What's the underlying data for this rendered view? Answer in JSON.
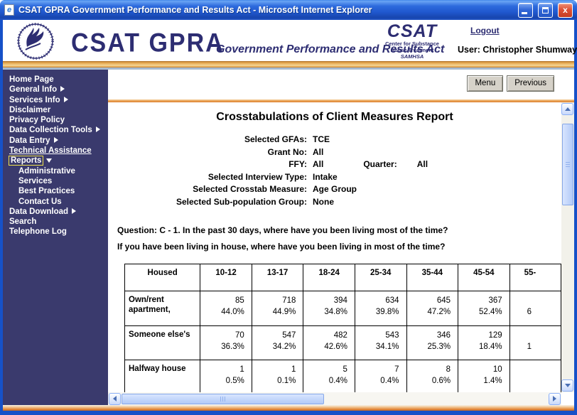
{
  "window": {
    "title": "CSAT GPRA Government Performance and Results Act - Microsoft Internet Explorer"
  },
  "header": {
    "brand": "CSAT GPRA",
    "brand_subtitle": "Government Performance and Results Act",
    "csat": {
      "title": "CSAT",
      "line1": "Center for Substance",
      "line2": "Abuse Treatment",
      "line3": "SAMHSA"
    },
    "logout": "Logout",
    "user": "User: Christopher Shumway"
  },
  "sidebar": {
    "items": [
      {
        "label": "Home Page"
      },
      {
        "label": "General Info",
        "arrow": "right"
      },
      {
        "label": "Services Info",
        "arrow": "right"
      },
      {
        "label": "Disclaimer"
      },
      {
        "label": "Privacy Policy"
      },
      {
        "label": "Data Collection Tools",
        "arrow": "right"
      },
      {
        "label": "Data Entry",
        "arrow": "right"
      },
      {
        "label": "Technical Assistance",
        "underline": true
      },
      {
        "label": "Reports",
        "arrow": "down",
        "selected": true
      },
      {
        "label": "Administrative",
        "indent": true
      },
      {
        "label": "Services",
        "indent": true
      },
      {
        "label": "Best Practices",
        "indent": true
      },
      {
        "label": "Contact Us",
        "indent": true
      },
      {
        "label": "Data Download",
        "arrow": "right"
      },
      {
        "label": "Search"
      },
      {
        "label": "Telephone Log"
      }
    ]
  },
  "toolbar": {
    "menu": "Menu",
    "previous": "Previous"
  },
  "report": {
    "title": "Crosstabulations of Client Measures Report",
    "params": [
      {
        "label": "Selected GFAs:",
        "value": "TCE"
      },
      {
        "label": "Grant No:",
        "value": "All"
      },
      {
        "label": "FFY:",
        "value": "All",
        "label2": "Quarter:",
        "value2": "All"
      },
      {
        "label": "Selected Interview Type:",
        "value": "Intake"
      },
      {
        "label": "Selected Crosstab Measure:",
        "value": "Age Group"
      },
      {
        "label": "Selected Sub-population Group:",
        "value": "None"
      }
    ],
    "question1": "Question: C - 1. In the past 30 days, where have you been living most of the time?",
    "question2": "If you have been living in house, where have you been living in most of the time?"
  },
  "table": {
    "col_headers": [
      "Housed",
      "10-12",
      "13-17",
      "18-24",
      "25-34",
      "35-44",
      "45-54",
      "55-"
    ],
    "rows": [
      {
        "label": "Own/rent apartment,",
        "cells": [
          [
            "85",
            "44.0%"
          ],
          [
            "718",
            "44.9%"
          ],
          [
            "394",
            "34.8%"
          ],
          [
            "634",
            "39.8%"
          ],
          [
            "645",
            "47.2%"
          ],
          [
            "367",
            "52.4%"
          ],
          [
            "",
            "6"
          ]
        ]
      },
      {
        "label": "Someone else's",
        "cells": [
          [
            "70",
            "36.3%"
          ],
          [
            "547",
            "34.2%"
          ],
          [
            "482",
            "42.6%"
          ],
          [
            "543",
            "34.1%"
          ],
          [
            "346",
            "25.3%"
          ],
          [
            "129",
            "18.4%"
          ],
          [
            "",
            "1"
          ]
        ]
      },
      {
        "label": "Halfway house",
        "cells": [
          [
            "1",
            "0.5%"
          ],
          [
            "1",
            "0.1%"
          ],
          [
            "5",
            "0.4%"
          ],
          [
            "7",
            "0.4%"
          ],
          [
            "8",
            "0.6%"
          ],
          [
            "10",
            "1.4%"
          ],
          [
            "",
            ""
          ]
        ]
      }
    ]
  },
  "colors": {
    "window_border": "#1651C8",
    "sidebar_bg": "#3A3A6D",
    "brand_navy": "#2D2D72",
    "gold": "#E3A24B",
    "orange_rule": "#E2873C",
    "selected_outline": "#F0E34D",
    "close_red": "#DE5136"
  }
}
